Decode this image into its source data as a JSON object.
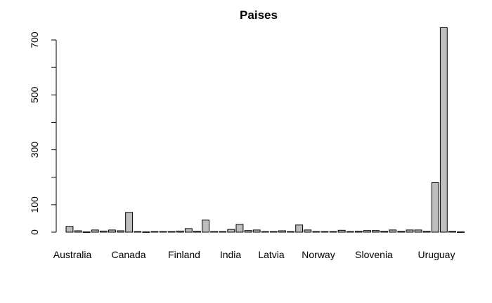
{
  "chart_data": {
    "type": "bar",
    "title": "Paises",
    "xlabel": "",
    "ylabel": "",
    "ylim": [
      0,
      750
    ],
    "yticks": [
      0,
      100,
      300,
      500,
      700
    ],
    "bar_color": "#bebebe",
    "visible_category_labels": [
      "Australia",
      "Canada",
      "Finland",
      "India",
      "Latvia",
      "Norway",
      "Slovenia",
      "Uruguay"
    ],
    "values": [
      21,
      5,
      1,
      8,
      4,
      8,
      5,
      72,
      2,
      1,
      2,
      2,
      2,
      4,
      13,
      3,
      44,
      2,
      2,
      10,
      28,
      6,
      8,
      2,
      2,
      5,
      2,
      26,
      8,
      2,
      2,
      2,
      7,
      2,
      3,
      6,
      6,
      3,
      8,
      3,
      8,
      8,
      3,
      180,
      745,
      3,
      1
    ]
  }
}
